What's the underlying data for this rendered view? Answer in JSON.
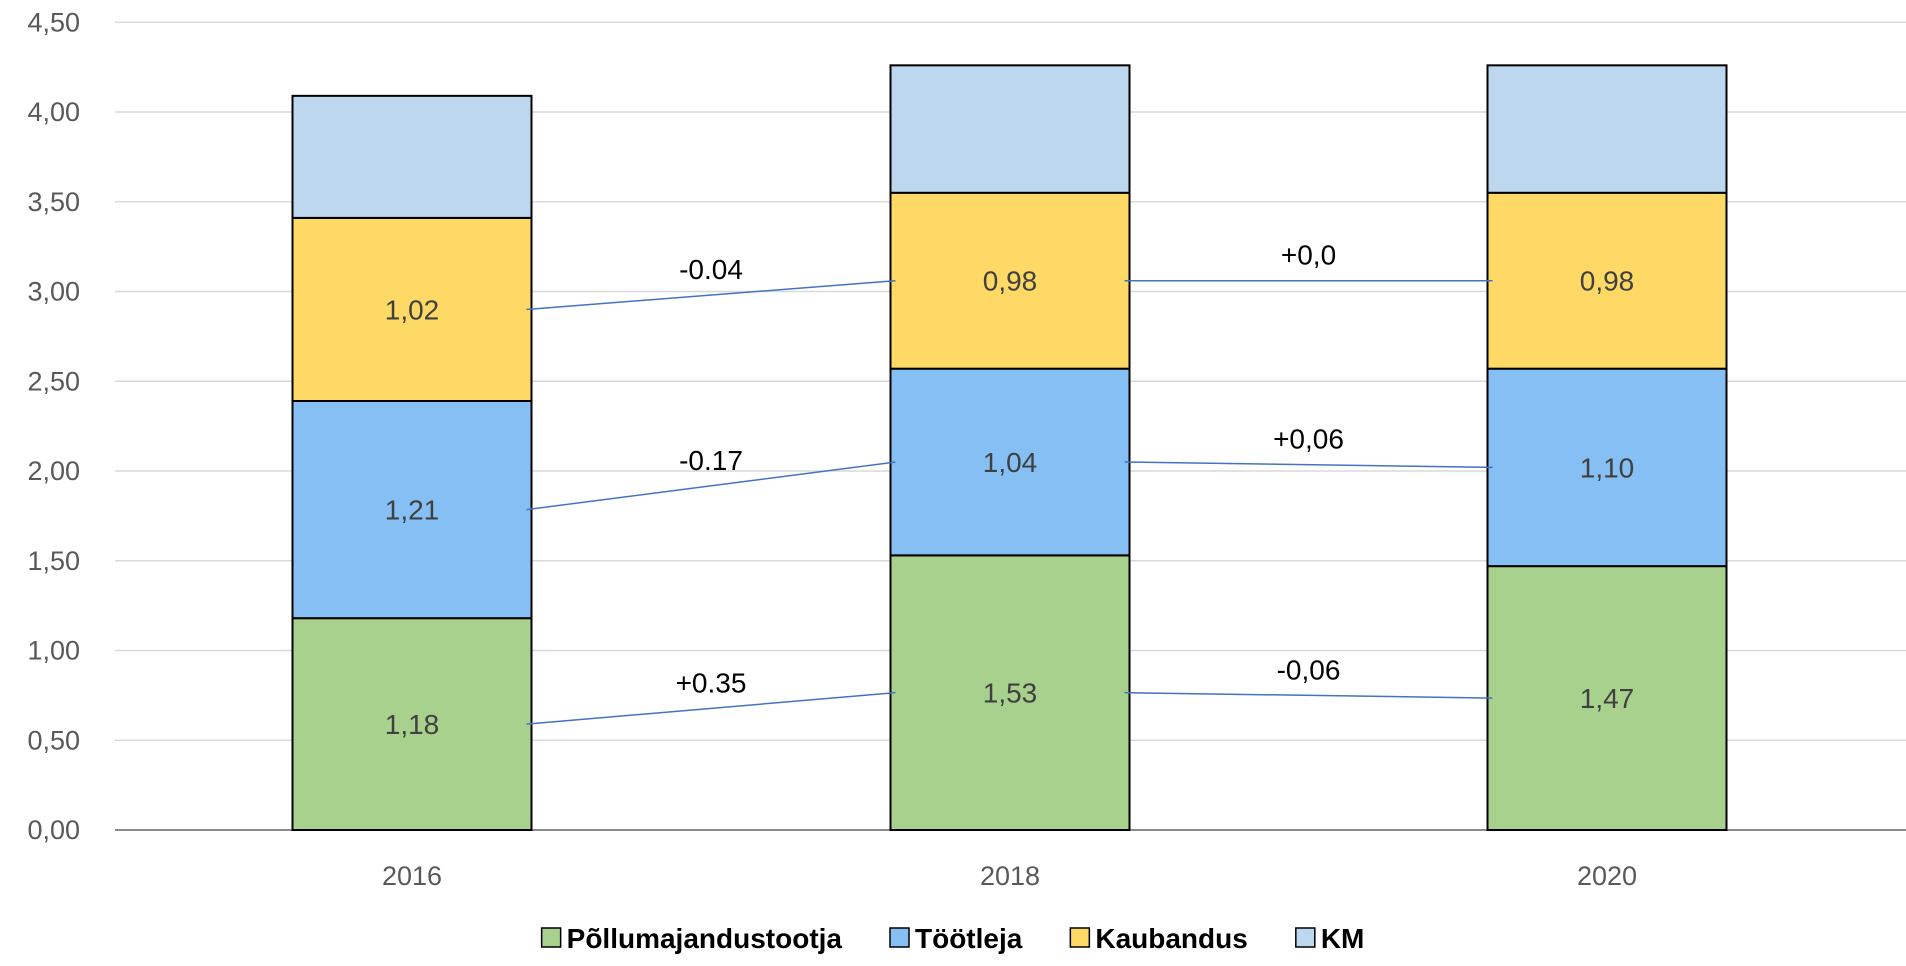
{
  "chart_data": {
    "type": "bar",
    "stacked": true,
    "categories": [
      "2016",
      "2018",
      "2020"
    ],
    "ylim": [
      0,
      4.5
    ],
    "yticks": [
      0,
      0.5,
      1,
      1.5,
      2,
      2.5,
      3,
      3.5,
      4,
      4.5
    ],
    "ytick_labels": [
      "0,00",
      "0,50",
      "1,00",
      "1,50",
      "2,00",
      "2,50",
      "3,00",
      "3,50",
      "4,00",
      "4,50"
    ],
    "grid": true,
    "legend_position": "bottom",
    "series": [
      {
        "name": "Põllumajandustootja",
        "color": "#A9D18E",
        "values": [
          1.18,
          1.53,
          1.47
        ],
        "labels": [
          "1,18",
          "1,53",
          "1,47"
        ]
      },
      {
        "name": "Töötleja",
        "color": "#85BFF3",
        "values": [
          1.21,
          1.04,
          1.1
        ],
        "labels": [
          "1,21",
          "1,04",
          "1,10"
        ]
      },
      {
        "name": "Kaubandus",
        "color": "#FFD966",
        "values": [
          1.02,
          0.98,
          0.98
        ],
        "labels": [
          "1,02",
          "0,98",
          "0,98"
        ]
      },
      {
        "name": "KM",
        "color": "#BDD7EE",
        "values": [
          0.68,
          0.71,
          0.71
        ],
        "labels": [
          "",
          "",
          ""
        ]
      }
    ],
    "annotations": [
      {
        "text": "+0.35",
        "series": 0,
        "from": 0,
        "to": 1
      },
      {
        "text": "-0,06",
        "series": 0,
        "from": 1,
        "to": 2
      },
      {
        "text": "-0.17",
        "series": 1,
        "from": 0,
        "to": 1
      },
      {
        "text": "+0,06",
        "series": 1,
        "from": 1,
        "to": 2
      },
      {
        "text": "-0.04",
        "series": 2,
        "from": 0,
        "to": 1
      },
      {
        "text": "+0,0",
        "series": 2,
        "from": 1,
        "to": 2
      }
    ],
    "connector_color": "#4472C4"
  }
}
